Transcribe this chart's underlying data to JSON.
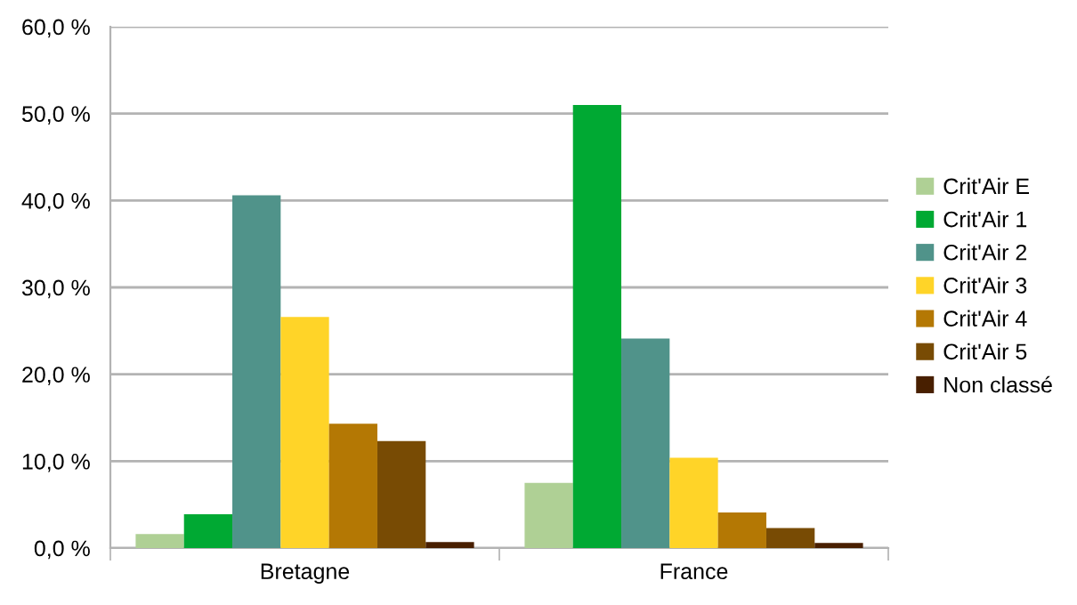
{
  "chart_data": {
    "type": "bar",
    "categories": [
      "Bretagne",
      "France"
    ],
    "series": [
      {
        "name": "Crit'Air E",
        "color": "#afd095",
        "values": [
          1.6,
          7.5
        ]
      },
      {
        "name": "Crit'Air 1",
        "color": "#00a933",
        "values": [
          3.9,
          51.0
        ]
      },
      {
        "name": "Crit'Air 2",
        "color": "#50938a",
        "values": [
          40.6,
          24.1
        ]
      },
      {
        "name": "Crit'Air 3",
        "color": "#ffd428",
        "values": [
          26.6,
          10.4
        ]
      },
      {
        "name": "Crit'Air 4",
        "color": "#b47804",
        "values": [
          14.3,
          4.1
        ]
      },
      {
        "name": "Crit'Air 5",
        "color": "#784b04",
        "values": [
          12.3,
          2.3
        ]
      },
      {
        "name": "Non classé",
        "color": "#481f00",
        "values": [
          0.7,
          0.6
        ]
      }
    ],
    "ylim": [
      0,
      60
    ],
    "yticks": [
      {
        "value": 0,
        "label": "0,0 %"
      },
      {
        "value": 10,
        "label": "10,0 %"
      },
      {
        "value": 20,
        "label": "20,0 %"
      },
      {
        "value": 30,
        "label": "30,0 %"
      },
      {
        "value": 40,
        "label": "40,0 %"
      },
      {
        "value": 50,
        "label": "50,0 %"
      },
      {
        "value": 60,
        "label": "60,0 %"
      }
    ],
    "grid": "y",
    "legend": "right"
  }
}
